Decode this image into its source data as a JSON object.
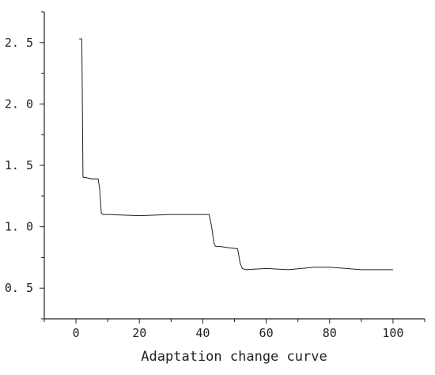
{
  "chart_data": {
    "type": "line",
    "title": "",
    "xlabel": "Adaptation change curve",
    "ylabel": "",
    "xlim": [
      -10,
      110
    ],
    "ylim": [
      0.25,
      2.75
    ],
    "grid": false,
    "x_ticks": [
      0,
      20,
      40,
      60,
      80,
      100
    ],
    "x_tick_labels": [
      "0",
      "20",
      "40",
      "60",
      "80",
      "100"
    ],
    "y_ticks": [
      0.5,
      1.0,
      1.5,
      2.0,
      2.5
    ],
    "y_tick_labels": [
      "0. 5",
      "1. 0",
      "1. 5",
      "2. 0",
      "2. 5"
    ],
    "series": [
      {
        "color": "#222222",
        "x": [
          1,
          1.8,
          1.9,
          2,
          2.1,
          2.2,
          2.3,
          2.4,
          3,
          5,
          7,
          7.5,
          8,
          8.5,
          10,
          20,
          30,
          40,
          42,
          42.8,
          43.5,
          44,
          45,
          48,
          51,
          51.8,
          52.5,
          53.5,
          60,
          67,
          75,
          80,
          90,
          100
        ],
        "y": [
          2.53,
          2.53,
          2.35,
          2.05,
          1.7,
          1.41,
          1.4,
          1.4,
          1.4,
          1.39,
          1.39,
          1.3,
          1.11,
          1.1,
          1.1,
          1.09,
          1.1,
          1.1,
          1.1,
          1.0,
          0.87,
          0.84,
          0.84,
          0.83,
          0.82,
          0.7,
          0.66,
          0.65,
          0.66,
          0.65,
          0.67,
          0.67,
          0.65,
          0.65
        ]
      }
    ]
  }
}
